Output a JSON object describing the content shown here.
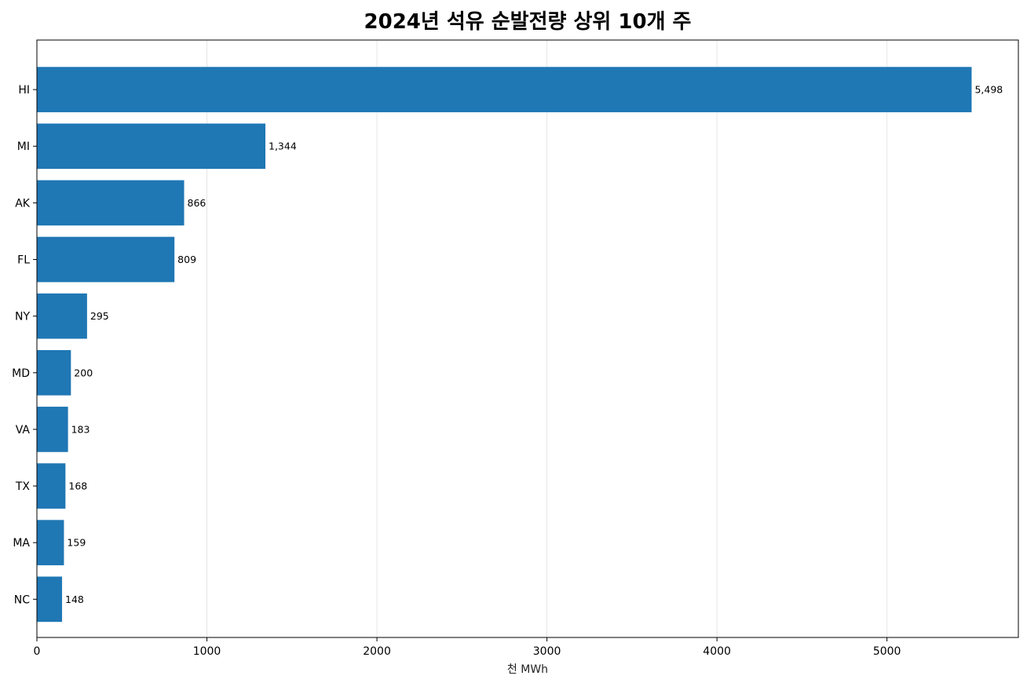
{
  "chart_data": {
    "type": "bar",
    "orientation": "horizontal",
    "title": "2024년 석유 순발전량 상위 10개 주",
    "xlabel": "천 MWh",
    "ylabel": "",
    "categories": [
      "HI",
      "MI",
      "AK",
      "FL",
      "NY",
      "MD",
      "VA",
      "TX",
      "MA",
      "NC"
    ],
    "values": [
      5498,
      1344,
      866,
      809,
      295,
      200,
      183,
      168,
      159,
      148
    ],
    "value_labels": [
      "5,498",
      "1,344",
      "866",
      "809",
      "295",
      "200",
      "183",
      "168",
      "159",
      "148"
    ],
    "xlim": [
      0,
      5772.9
    ],
    "x_ticks": [
      0,
      1000,
      2000,
      3000,
      4000,
      5000
    ],
    "x_tick_labels": [
      "0",
      "1000",
      "2000",
      "3000",
      "4000",
      "5000"
    ],
    "grid": "x-axis vertical lines",
    "bar_color": "#1f77b4",
    "grid_color": "#e6e6e6"
  }
}
